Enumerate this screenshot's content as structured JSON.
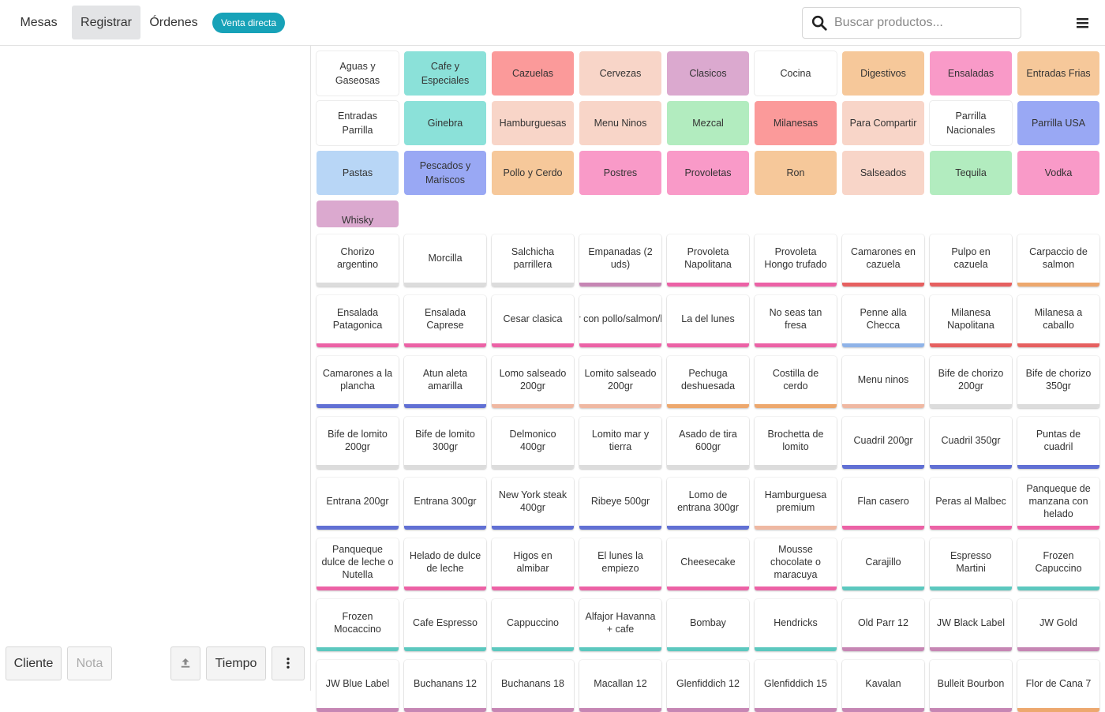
{
  "nav": {
    "tabs": [
      "Mesas",
      "Registrar",
      "Órdenes"
    ],
    "active_tab": "Registrar",
    "badge": "Venta directa"
  },
  "search": {
    "placeholder": "Buscar productos..."
  },
  "left_panel": {
    "buttons": {
      "cliente": "Cliente",
      "nota": "Nota",
      "tiempo": "Tiempo"
    }
  },
  "categories": [
    {
      "label": "Aguas y Gaseosas",
      "color": "#ffffff"
    },
    {
      "label": "Cafe y Especiales",
      "color": "#8be1d9"
    },
    {
      "label": "Cazuelas",
      "color": "#fb9a9a"
    },
    {
      "label": "Cervezas",
      "color": "#f8d5c8"
    },
    {
      "label": "Clasicos",
      "color": "#dba9cf"
    },
    {
      "label": "Cocina",
      "color": "#ffffff"
    },
    {
      "label": "Digestivos",
      "color": "#f6c89a"
    },
    {
      "label": "Ensaladas",
      "color": "#f99ac8"
    },
    {
      "label": "Entradas Frias",
      "color": "#f6c89a"
    },
    {
      "label": "Entradas Parrilla",
      "color": "#ffffff"
    },
    {
      "label": "Ginebra",
      "color": "#8be1d9"
    },
    {
      "label": "Hamburguesas",
      "color": "#f8d5c8"
    },
    {
      "label": "Menu Ninos",
      "color": "#f8d5c8"
    },
    {
      "label": "Mezcal",
      "color": "#b2ecbf"
    },
    {
      "label": "Milanesas",
      "color": "#fb9a9a"
    },
    {
      "label": "Para Compartir",
      "color": "#f8d5c8"
    },
    {
      "label": "Parrilla Nacionales",
      "color": "#ffffff"
    },
    {
      "label": "Parrilla USA",
      "color": "#99a8f4"
    },
    {
      "label": "Pastas",
      "color": "#b8d6f6"
    },
    {
      "label": "Pescados y Mariscos",
      "color": "#99a8f4"
    },
    {
      "label": "Pollo y Cerdo",
      "color": "#f6c89a"
    },
    {
      "label": "Postres",
      "color": "#f99ac8"
    },
    {
      "label": "Provoletas",
      "color": "#f99ac8"
    },
    {
      "label": "Ron",
      "color": "#f6c89a"
    },
    {
      "label": "Salseados",
      "color": "#f8d5c8"
    },
    {
      "label": "Tequila",
      "color": "#b2ecbf"
    },
    {
      "label": "Vodka",
      "color": "#f99ac8"
    },
    {
      "label": "Whisky",
      "color": "#dba9cf"
    }
  ],
  "products": [
    {
      "label": "Chorizo argentino",
      "color": "#dcdcdc"
    },
    {
      "label": "Morcilla",
      "color": "#dcdcdc"
    },
    {
      "label": "Salchicha parrillera",
      "color": "#dcdcdc"
    },
    {
      "label": "Empanadas (2 uds)",
      "color": "#c686b4"
    },
    {
      "label": "Provoleta Napolitana",
      "color": "#ec62a6"
    },
    {
      "label": "Provoleta Hongo trufado",
      "color": "#ec62a6"
    },
    {
      "label": "Camarones en cazuela",
      "color": "#e66060"
    },
    {
      "label": "Pulpo en cazuela",
      "color": "#e66060"
    },
    {
      "label": "Carpaccio de salmon",
      "color": "#eda86e"
    },
    {
      "label": "Ensalada Patagonica",
      "color": "#ec62a6"
    },
    {
      "label": "Ensalada Caprese",
      "color": "#ec62a6"
    },
    {
      "label": "Cesar clasica",
      "color": "#ec62a6"
    },
    {
      "label": "Cesar con pollo/salmon/lomito",
      "color": "#ec62a6"
    },
    {
      "label": "La del lunes",
      "color": "#ec62a6"
    },
    {
      "label": "No seas tan fresa",
      "color": "#ec62a6"
    },
    {
      "label": "Penne alla Checca",
      "color": "#8fb3e8"
    },
    {
      "label": "Milanesa Napolitana",
      "color": "#e66060"
    },
    {
      "label": "Milanesa a caballo",
      "color": "#e66060"
    },
    {
      "label": "Camarones a la plancha",
      "color": "#6170d4"
    },
    {
      "label": "Atun aleta amarilla",
      "color": "#6170d4"
    },
    {
      "label": "Lomo salseado 200gr",
      "color": "#efb8a2"
    },
    {
      "label": "Lomito salseado 200gr",
      "color": "#efb8a2"
    },
    {
      "label": "Pechuga deshuesada",
      "color": "#eda86e"
    },
    {
      "label": "Costilla de cerdo",
      "color": "#eda86e"
    },
    {
      "label": "Menu ninos",
      "color": "#efb8a2"
    },
    {
      "label": "Bife de chorizo 200gr",
      "color": "#dcdcdc"
    },
    {
      "label": "Bife de chorizo 350gr",
      "color": "#dcdcdc"
    },
    {
      "label": "Bife de lomito 200gr",
      "color": "#dcdcdc"
    },
    {
      "label": "Bife de lomito 300gr",
      "color": "#dcdcdc"
    },
    {
      "label": "Delmonico 400gr",
      "color": "#dcdcdc"
    },
    {
      "label": "Lomito mar y tierra",
      "color": "#dcdcdc"
    },
    {
      "label": "Asado de tira 600gr",
      "color": "#dcdcdc"
    },
    {
      "label": "Brochetta de lomito",
      "color": "#dcdcdc"
    },
    {
      "label": "Cuadril 200gr",
      "color": "#6170d4"
    },
    {
      "label": "Cuadril 350gr",
      "color": "#6170d4"
    },
    {
      "label": "Puntas de cuadril",
      "color": "#6170d4"
    },
    {
      "label": "Entrana 200gr",
      "color": "#6170d4"
    },
    {
      "label": "Entrana 300gr",
      "color": "#6170d4"
    },
    {
      "label": "New York steak 400gr",
      "color": "#6170d4"
    },
    {
      "label": "Ribeye 500gr",
      "color": "#6170d4"
    },
    {
      "label": "Lomo de entrana 300gr",
      "color": "#6170d4"
    },
    {
      "label": "Hamburguesa premium",
      "color": "#efb8a2"
    },
    {
      "label": "Flan casero",
      "color": "#ec62a6"
    },
    {
      "label": "Peras al Malbec",
      "color": "#ec62a6"
    },
    {
      "label": "Panqueque de manzana con helado",
      "color": "#ec62a6"
    },
    {
      "label": "Panqueque dulce de leche o Nutella",
      "color": "#ec62a6"
    },
    {
      "label": "Helado de dulce de leche",
      "color": "#ec62a6"
    },
    {
      "label": "Higos en almibar",
      "color": "#ec62a6"
    },
    {
      "label": "El lunes la empiezo",
      "color": "#ec62a6"
    },
    {
      "label": "Cheesecake",
      "color": "#ec62a6"
    },
    {
      "label": "Mousse chocolate o maracuya",
      "color": "#ec62a6"
    },
    {
      "label": "Carajillo",
      "color": "#5cc8bf"
    },
    {
      "label": "Espresso Martini",
      "color": "#5cc8bf"
    },
    {
      "label": "Frozen Capuccino",
      "color": "#5cc8bf"
    },
    {
      "label": "Frozen Mocaccino",
      "color": "#5cc8bf"
    },
    {
      "label": "Cafe Espresso",
      "color": "#5cc8bf"
    },
    {
      "label": "Cappuccino",
      "color": "#5cc8bf"
    },
    {
      "label": "Alfajor Havanna + cafe",
      "color": "#5cc8bf"
    },
    {
      "label": "Bombay",
      "color": "#5cc8bf"
    },
    {
      "label": "Hendricks",
      "color": "#5cc8bf"
    },
    {
      "label": "Old Parr 12",
      "color": "#c686b4"
    },
    {
      "label": "JW Black Label",
      "color": "#c686b4"
    },
    {
      "label": "JW Gold",
      "color": "#c686b4"
    },
    {
      "label": "JW Blue Label",
      "color": "#c686b4"
    },
    {
      "label": "Buchanans 12",
      "color": "#c686b4"
    },
    {
      "label": "Buchanans 18",
      "color": "#c686b4"
    },
    {
      "label": "Macallan 12",
      "color": "#c686b4"
    },
    {
      "label": "Glenfiddich 12",
      "color": "#c686b4"
    },
    {
      "label": "Glenfiddich 15",
      "color": "#c686b4"
    },
    {
      "label": "Kavalan",
      "color": "#c686b4"
    },
    {
      "label": "Bulleit Bourbon",
      "color": "#c686b4"
    },
    {
      "label": "Flor de Cana 7",
      "color": "#eda86e"
    }
  ],
  "icons": {
    "search": "search-icon",
    "menu": "hamburger-menu-icon",
    "upload": "upload-icon",
    "more": "more-vertical-icon"
  }
}
